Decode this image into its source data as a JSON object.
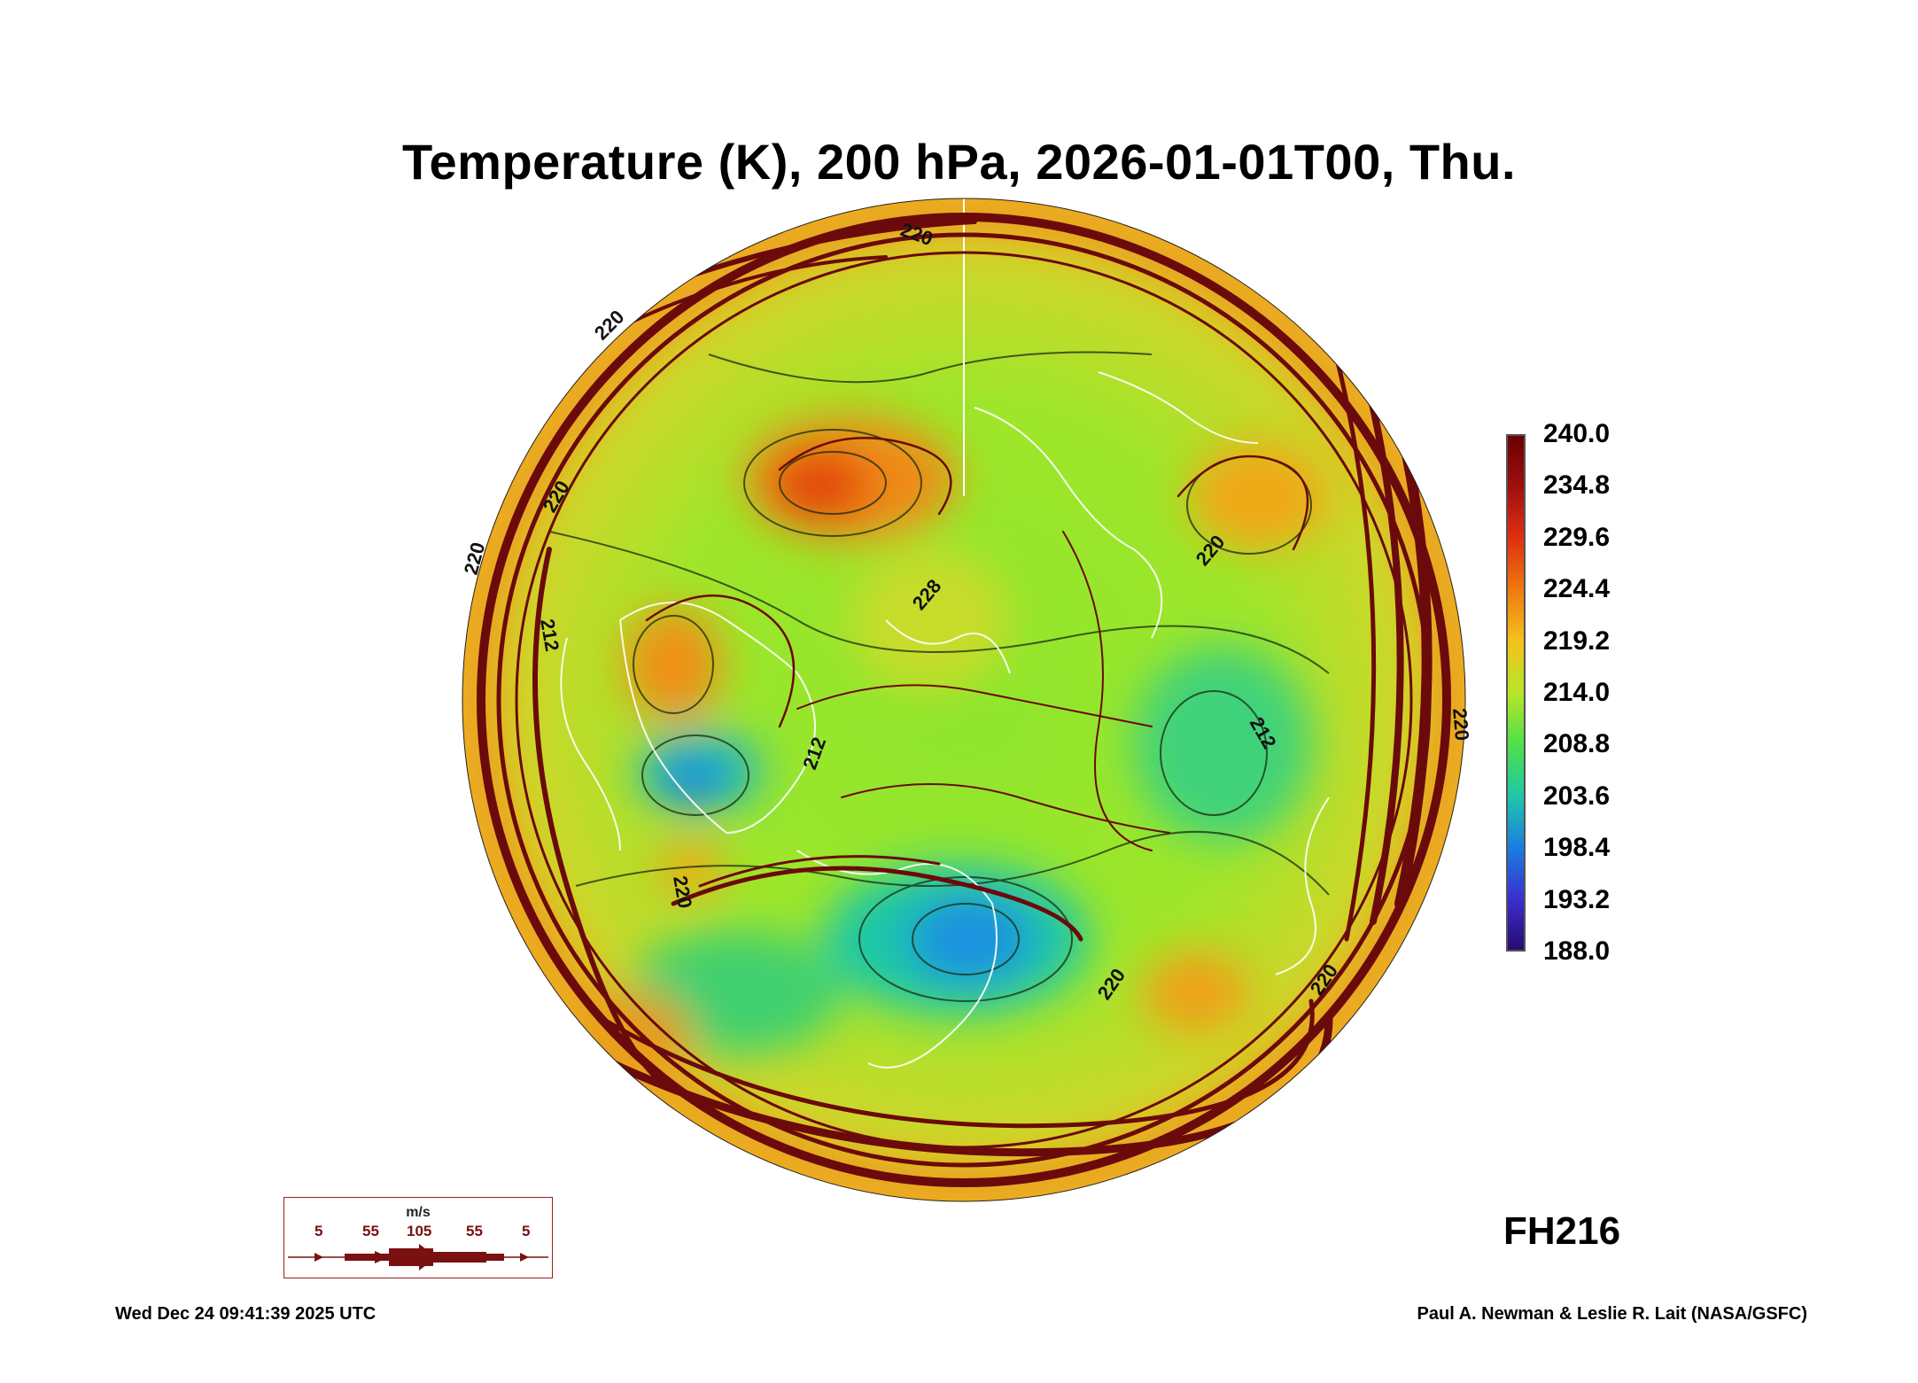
{
  "title": "Temperature (K), 200 hPa, 2026-01-01T00, Thu.",
  "colorbar": {
    "labels": [
      "240.0",
      "234.8",
      "229.6",
      "224.4",
      "219.2",
      "214.0",
      "208.8",
      "203.6",
      "198.4",
      "193.2",
      "188.0"
    ],
    "colors": [
      "#6a0000",
      "#a01010",
      "#e03010",
      "#f07a10",
      "#f3c21c",
      "#b7e629",
      "#4fe04a",
      "#1fc7a6",
      "#1a7fe0",
      "#3a30d0",
      "#2a0a70"
    ]
  },
  "contour_labels": [
    "220",
    "220",
    "220",
    "220",
    "212",
    "212",
    "228",
    "212",
    "220",
    "220",
    "220",
    "220",
    "220"
  ],
  "forecast_hour": "FH216",
  "wind_legend": {
    "unit": "m/s",
    "values": [
      "5",
      "55",
      "105",
      "55",
      "5"
    ]
  },
  "footer": {
    "timestamp": "Wed Dec 24 09:41:39 2025 UTC",
    "credit": "Paul A. Newman & Leslie R. Lait (NASA/GSFC)"
  },
  "colors": {
    "streamline": "#6b0a0a",
    "coastline": "#ffffff",
    "contour": "#1a2a10"
  }
}
